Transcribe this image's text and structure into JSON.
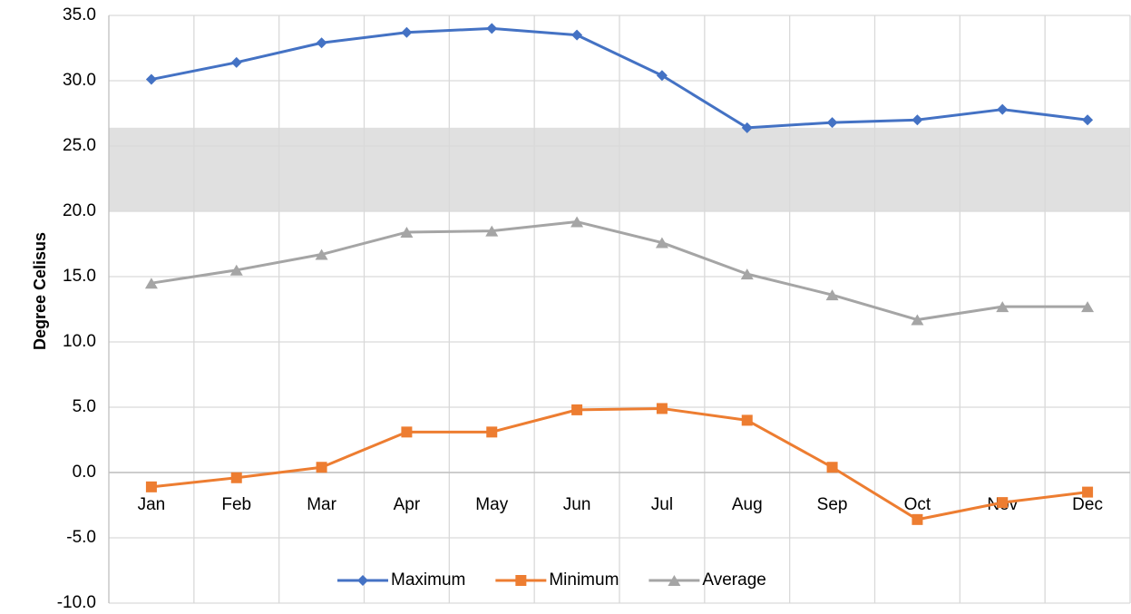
{
  "chart_data": {
    "type": "line",
    "categories": [
      "Jan",
      "Feb",
      "Mar",
      "Apr",
      "May",
      "Jun",
      "Jul",
      "Aug",
      "Sep",
      "Oct",
      "Nov",
      "Dec"
    ],
    "series": [
      {
        "name": "Maximum",
        "color": "#4472c4",
        "marker": "diamond",
        "values": [
          30.1,
          31.4,
          32.9,
          33.7,
          34.0,
          33.5,
          30.4,
          26.4,
          26.8,
          27.0,
          27.8,
          27.0
        ]
      },
      {
        "name": "Minimum",
        "color": "#ed7d31",
        "marker": "square",
        "values": [
          -1.1,
          -0.4,
          0.4,
          3.1,
          3.1,
          4.8,
          4.9,
          4.0,
          0.4,
          -3.6,
          -2.3,
          -1.5
        ]
      },
      {
        "name": "Average",
        "color": "#a5a5a5",
        "marker": "triangle",
        "values": [
          14.5,
          15.5,
          16.7,
          18.4,
          18.5,
          19.2,
          17.6,
          15.2,
          13.6,
          11.7,
          12.7,
          12.7
        ]
      }
    ],
    "band": {
      "range": [
        20,
        26.4
      ],
      "color": "#e0e0e0"
    },
    "ylabel": "Degree Celisus",
    "ylim": [
      -10,
      35
    ],
    "yticks": [
      {
        "value": -10,
        "label": "-10.0"
      },
      {
        "value": -5,
        "label": "-5.0"
      },
      {
        "value": 0,
        "label": "0.0"
      },
      {
        "value": 5,
        "label": "5.0"
      },
      {
        "value": 10,
        "label": "10.0"
      },
      {
        "value": 15,
        "label": "15.0"
      },
      {
        "value": 20,
        "label": "20.0"
      },
      {
        "value": 25,
        "label": "25.0"
      },
      {
        "value": 30,
        "label": "30.0"
      },
      {
        "value": 35,
        "label": "35.0"
      }
    ],
    "grid": true,
    "legend": "bottom"
  }
}
